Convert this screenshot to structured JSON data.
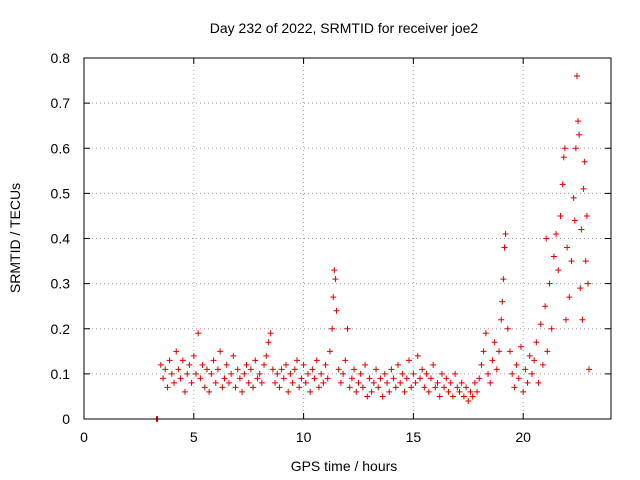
{
  "colors": {
    "series": "#e00000",
    "grid": "#a0a0a0",
    "axis": "#000000",
    "background": "#ffffff"
  },
  "chart_data": {
    "type": "scatter",
    "title": "Day 232 of 2022, SRMTID for receiver joe2",
    "xlabel": "GPS time / hours",
    "ylabel": "SRMTID / TECUs",
    "xlim": [
      0,
      24
    ],
    "ylim": [
      0,
      0.8
    ],
    "xticks": [
      0,
      5,
      10,
      15,
      20
    ],
    "xtick_labels": [
      "0",
      "5",
      "10",
      "15",
      "20"
    ],
    "yticks": [
      0,
      0.1,
      0.2,
      0.3,
      0.4,
      0.5,
      0.6,
      0.7,
      0.8
    ],
    "ytick_labels": [
      "0",
      "0.1",
      "0.2",
      "0.3",
      "0.4",
      "0.5",
      "0.6",
      "0.7",
      "0.8"
    ],
    "grid": true,
    "marker": "+",
    "series": [
      {
        "name": "SRMTID",
        "points": [
          [
            3.3,
            0.0
          ],
          [
            3.35,
            0.0
          ],
          [
            3.5,
            0.12
          ],
          [
            3.6,
            0.09
          ],
          [
            3.7,
            0.11
          ],
          [
            3.8,
            0.07
          ],
          [
            3.9,
            0.13
          ],
          [
            4.0,
            0.1
          ],
          [
            4.1,
            0.08
          ],
          [
            4.2,
            0.15
          ],
          [
            4.3,
            0.11
          ],
          [
            4.4,
            0.09
          ],
          [
            4.5,
            0.13
          ],
          [
            4.6,
            0.06
          ],
          [
            4.7,
            0.1
          ],
          [
            4.8,
            0.12
          ],
          [
            4.9,
            0.08
          ],
          [
            5.0,
            0.14
          ],
          [
            5.1,
            0.1
          ],
          [
            5.2,
            0.19
          ],
          [
            5.3,
            0.09
          ],
          [
            5.4,
            0.12
          ],
          [
            5.5,
            0.07
          ],
          [
            5.6,
            0.11
          ],
          [
            5.7,
            0.06
          ],
          [
            5.8,
            0.1
          ],
          [
            5.9,
            0.13
          ],
          [
            6.0,
            0.08
          ],
          [
            6.1,
            0.11
          ],
          [
            6.2,
            0.15
          ],
          [
            6.3,
            0.07
          ],
          [
            6.4,
            0.09
          ],
          [
            6.5,
            0.12
          ],
          [
            6.6,
            0.08
          ],
          [
            6.7,
            0.1
          ],
          [
            6.8,
            0.14
          ],
          [
            6.9,
            0.07
          ],
          [
            7.0,
            0.11
          ],
          [
            7.1,
            0.09
          ],
          [
            7.2,
            0.06
          ],
          [
            7.3,
            0.1
          ],
          [
            7.4,
            0.12
          ],
          [
            7.5,
            0.08
          ],
          [
            7.6,
            0.11
          ],
          [
            7.7,
            0.07
          ],
          [
            7.8,
            0.13
          ],
          [
            7.9,
            0.09
          ],
          [
            8.0,
            0.1
          ],
          [
            8.1,
            0.08
          ],
          [
            8.2,
            0.12
          ],
          [
            8.3,
            0.14
          ],
          [
            8.4,
            0.17
          ],
          [
            8.5,
            0.19
          ],
          [
            8.6,
            0.11
          ],
          [
            8.7,
            0.08
          ],
          [
            8.8,
            0.1
          ],
          [
            8.9,
            0.07
          ],
          [
            9.0,
            0.11
          ],
          [
            9.1,
            0.09
          ],
          [
            9.2,
            0.12
          ],
          [
            9.3,
            0.06
          ],
          [
            9.4,
            0.1
          ],
          [
            9.5,
            0.08
          ],
          [
            9.6,
            0.11
          ],
          [
            9.7,
            0.13
          ],
          [
            9.8,
            0.07
          ],
          [
            9.9,
            0.09
          ],
          [
            10.0,
            0.12
          ],
          [
            10.1,
            0.08
          ],
          [
            10.2,
            0.1
          ],
          [
            10.3,
            0.06
          ],
          [
            10.4,
            0.11
          ],
          [
            10.5,
            0.09
          ],
          [
            10.6,
            0.13
          ],
          [
            10.7,
            0.07
          ],
          [
            10.8,
            0.1
          ],
          [
            10.9,
            0.08
          ],
          [
            11.0,
            0.12
          ],
          [
            11.1,
            0.09
          ],
          [
            11.2,
            0.15
          ],
          [
            11.3,
            0.2
          ],
          [
            11.35,
            0.27
          ],
          [
            11.4,
            0.33
          ],
          [
            11.45,
            0.31
          ],
          [
            11.5,
            0.24
          ],
          [
            11.6,
            0.11
          ],
          [
            11.7,
            0.08
          ],
          [
            11.8,
            0.1
          ],
          [
            11.9,
            0.13
          ],
          [
            12.0,
            0.2
          ],
          [
            12.1,
            0.07
          ],
          [
            12.2,
            0.09
          ],
          [
            12.3,
            0.11
          ],
          [
            12.4,
            0.06
          ],
          [
            12.5,
            0.08
          ],
          [
            12.6,
            0.1
          ],
          [
            12.7,
            0.07
          ],
          [
            12.8,
            0.12
          ],
          [
            12.9,
            0.05
          ],
          [
            13.0,
            0.09
          ],
          [
            13.1,
            0.06
          ],
          [
            13.2,
            0.08
          ],
          [
            13.3,
            0.11
          ],
          [
            13.4,
            0.07
          ],
          [
            13.5,
            0.09
          ],
          [
            13.6,
            0.05
          ],
          [
            13.7,
            0.1
          ],
          [
            13.8,
            0.08
          ],
          [
            13.9,
            0.06
          ],
          [
            14.0,
            0.11
          ],
          [
            14.1,
            0.09
          ],
          [
            14.2,
            0.07
          ],
          [
            14.3,
            0.12
          ],
          [
            14.4,
            0.08
          ],
          [
            14.5,
            0.1
          ],
          [
            14.6,
            0.06
          ],
          [
            14.7,
            0.09
          ],
          [
            14.8,
            0.13
          ],
          [
            14.9,
            0.07
          ],
          [
            15.0,
            0.1
          ],
          [
            15.1,
            0.08
          ],
          [
            15.2,
            0.14
          ],
          [
            15.3,
            0.09
          ],
          [
            15.4,
            0.11
          ],
          [
            15.5,
            0.07
          ],
          [
            15.6,
            0.1
          ],
          [
            15.7,
            0.06
          ],
          [
            15.8,
            0.09
          ],
          [
            15.9,
            0.12
          ],
          [
            16.0,
            0.07
          ],
          [
            16.1,
            0.08
          ],
          [
            16.2,
            0.05
          ],
          [
            16.3,
            0.1
          ],
          [
            16.4,
            0.07
          ],
          [
            16.5,
            0.09
          ],
          [
            16.6,
            0.06
          ],
          [
            16.7,
            0.08
          ],
          [
            16.8,
            0.05
          ],
          [
            16.9,
            0.1
          ],
          [
            17.0,
            0.07
          ],
          [
            17.1,
            0.06
          ],
          [
            17.2,
            0.08
          ],
          [
            17.3,
            0.05
          ],
          [
            17.4,
            0.07
          ],
          [
            17.5,
            0.04
          ],
          [
            17.6,
            0.06
          ],
          [
            17.7,
            0.05
          ],
          [
            17.8,
            0.08
          ],
          [
            17.9,
            0.06
          ],
          [
            18.0,
            0.09
          ],
          [
            18.1,
            0.12
          ],
          [
            18.2,
            0.15
          ],
          [
            18.3,
            0.19
          ],
          [
            18.4,
            0.1
          ],
          [
            18.5,
            0.08
          ],
          [
            18.6,
            0.13
          ],
          [
            18.7,
            0.17
          ],
          [
            18.8,
            0.11
          ],
          [
            18.9,
            0.15
          ],
          [
            19.0,
            0.22
          ],
          [
            19.05,
            0.26
          ],
          [
            19.1,
            0.31
          ],
          [
            19.15,
            0.38
          ],
          [
            19.2,
            0.41
          ],
          [
            19.3,
            0.2
          ],
          [
            19.4,
            0.15
          ],
          [
            19.5,
            0.1
          ],
          [
            19.6,
            0.07
          ],
          [
            19.7,
            0.12
          ],
          [
            19.8,
            0.09
          ],
          [
            19.9,
            0.16
          ],
          [
            20.0,
            0.06
          ],
          [
            20.1,
            0.11
          ],
          [
            20.2,
            0.08
          ],
          [
            20.3,
            0.14
          ],
          [
            20.4,
            0.1
          ],
          [
            20.5,
            0.13
          ],
          [
            20.6,
            0.17
          ],
          [
            20.7,
            0.08
          ],
          [
            20.8,
            0.21
          ],
          [
            20.9,
            0.12
          ],
          [
            21.0,
            0.25
          ],
          [
            21.05,
            0.4
          ],
          [
            21.1,
            0.15
          ],
          [
            21.2,
            0.3
          ],
          [
            21.3,
            0.2
          ],
          [
            21.4,
            0.36
          ],
          [
            21.5,
            0.41
          ],
          [
            21.6,
            0.33
          ],
          [
            21.7,
            0.45
          ],
          [
            21.8,
            0.52
          ],
          [
            21.85,
            0.58
          ],
          [
            21.9,
            0.6
          ],
          [
            21.95,
            0.22
          ],
          [
            22.0,
            0.38
          ],
          [
            22.1,
            0.27
          ],
          [
            22.2,
            0.35
          ],
          [
            22.3,
            0.49
          ],
          [
            22.35,
            0.44
          ],
          [
            22.4,
            0.6
          ],
          [
            22.45,
            0.76
          ],
          [
            22.5,
            0.66
          ],
          [
            22.55,
            0.63
          ],
          [
            22.6,
            0.29
          ],
          [
            22.65,
            0.42
          ],
          [
            22.7,
            0.22
          ],
          [
            22.75,
            0.51
          ],
          [
            22.8,
            0.57
          ],
          [
            22.85,
            0.35
          ],
          [
            22.9,
            0.45
          ],
          [
            22.95,
            0.3
          ],
          [
            23.0,
            0.11
          ]
        ]
      }
    ]
  }
}
